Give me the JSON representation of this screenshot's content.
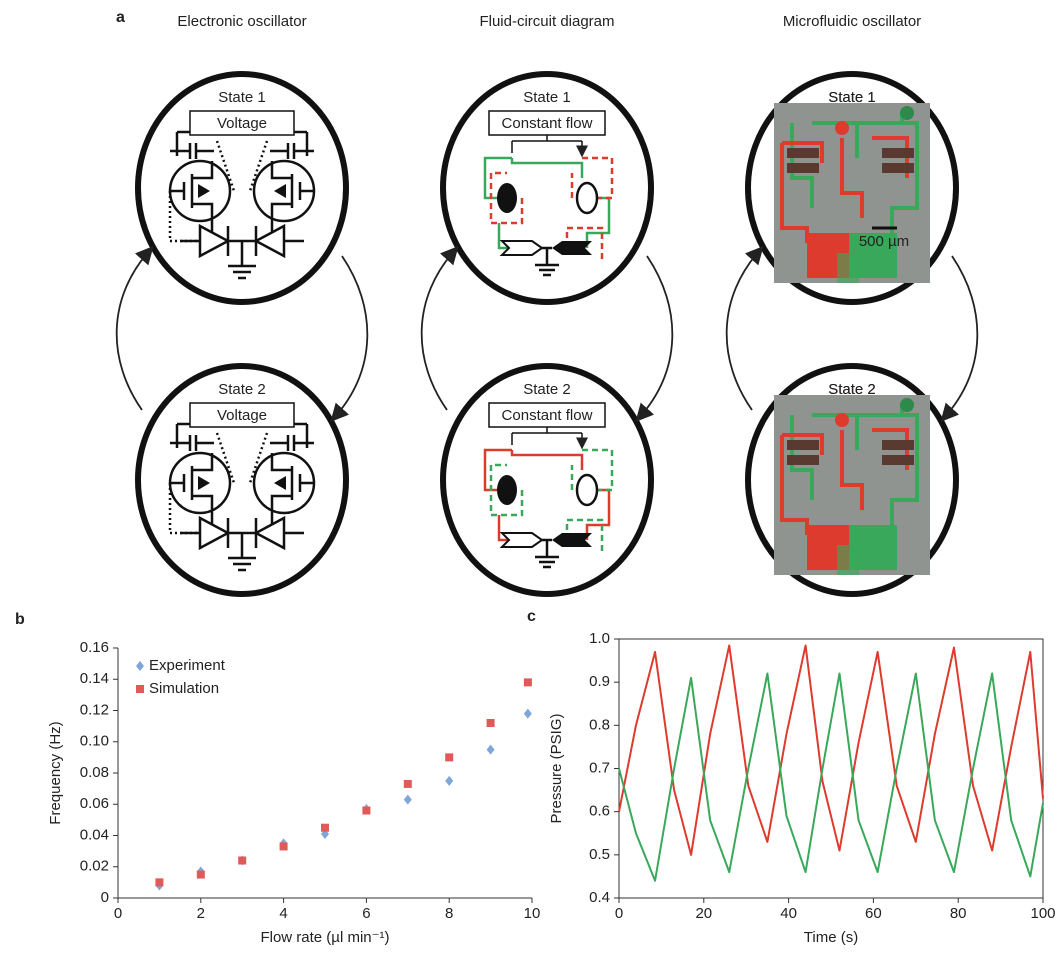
{
  "panel_a": {
    "label": "a",
    "columns": [
      {
        "title": "Electronic oscillator",
        "states": [
          "State 1",
          "State 2"
        ],
        "boxes": [
          "Voltage",
          "Voltage"
        ]
      },
      {
        "title": "Fluid-circuit diagram",
        "states": [
          "State 1",
          "State 2"
        ],
        "boxes": [
          "Constant flow",
          "Constant flow"
        ]
      },
      {
        "title": "Microfluidic oscillator",
        "states": [
          "State 1",
          "State 2"
        ],
        "scale_bar": "500 µm"
      }
    ]
  },
  "chart_data": [
    {
      "type": "scatter",
      "panel_label": "b",
      "x_label": "Flow rate (µl min⁻¹)",
      "y_label": "Frequency (Hz)",
      "xlim": [
        0,
        10
      ],
      "xticks": [
        0,
        2,
        4,
        6,
        8,
        10
      ],
      "ylim": [
        0,
        0.16
      ],
      "yticks": [
        0,
        0.02,
        0.04,
        0.06,
        0.08,
        {
          "value": 0.1,
          "label": "0.10"
        },
        0.12,
        0.14,
        0.16
      ],
      "legend": "upper left",
      "frame": false,
      "series": [
        {
          "name": "Experiment",
          "color": "#7ea6d8",
          "marker": "diamond",
          "x": [
            1,
            2,
            3,
            4,
            5,
            6,
            7,
            8,
            9,
            9.9
          ],
          "values": [
            0.008,
            0.017,
            0.024,
            0.035,
            0.041,
            0.057,
            0.063,
            0.075,
            0.095,
            0.118
          ]
        },
        {
          "name": "Simulation",
          "color": "#e05a5a",
          "marker": "square",
          "x": [
            1,
            2,
            3,
            4,
            5,
            6,
            7,
            8,
            9,
            9.9
          ],
          "values": [
            0.01,
            0.015,
            0.024,
            0.033,
            0.045,
            0.056,
            0.073,
            0.09,
            0.112,
            0.138
          ]
        }
      ]
    },
    {
      "type": "line",
      "panel_label": "c",
      "x_label": "Time (s)",
      "y_label": "Pressure (PSIG)",
      "xlim": [
        0,
        100
      ],
      "xticks": [
        0,
        20,
        40,
        60,
        80,
        100
      ],
      "ylim": [
        0.4,
        1.0
      ],
      "yticks": [
        0.4,
        0.5,
        0.6,
        0.7,
        0.8,
        0.9,
        {
          "value": 1.0,
          "label": "1.0"
        }
      ],
      "frame": true,
      "x": [
        0,
        4,
        8.5,
        13,
        17,
        21.5,
        26,
        30.5,
        35,
        39.5,
        44,
        48,
        52,
        56.5,
        61,
        65.5,
        70,
        74.5,
        79,
        83.5,
        88,
        92.5,
        97,
        100
      ],
      "series": [
        {
          "color": "#dd3b2e",
          "values": [
            0.6,
            0.8,
            0.97,
            0.65,
            0.5,
            0.78,
            0.985,
            0.66,
            0.53,
            0.78,
            0.985,
            0.67,
            0.51,
            0.76,
            0.97,
            0.66,
            0.53,
            0.78,
            0.98,
            0.66,
            0.51,
            0.75,
            0.97,
            0.63
          ]
        },
        {
          "color": "#3aa85a",
          "values": [
            0.7,
            0.55,
            0.44,
            0.7,
            0.91,
            0.58,
            0.46,
            0.7,
            0.92,
            0.59,
            0.46,
            0.7,
            0.92,
            0.58,
            0.46,
            0.7,
            0.92,
            0.58,
            0.46,
            0.7,
            0.92,
            0.58,
            0.45,
            0.62
          ]
        }
      ]
    }
  ]
}
